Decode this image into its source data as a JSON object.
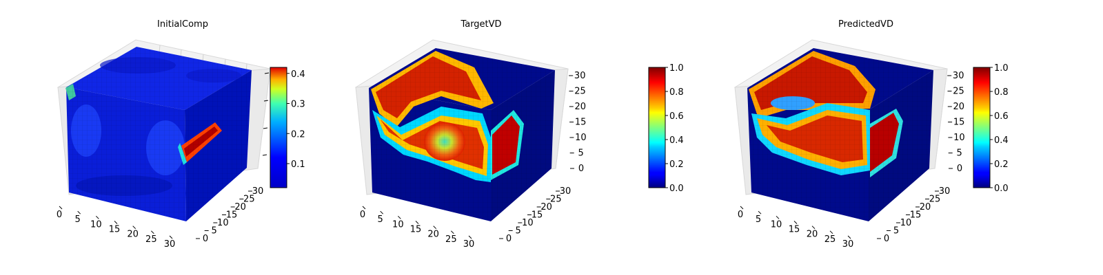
{
  "chart_data": [
    {
      "type": "heatmap",
      "subtype": "3d-voxel-cube",
      "title": "InitialComp",
      "x_ticks": [
        "0",
        "5",
        "10",
        "15",
        "20",
        "25",
        "30"
      ],
      "y_ticks": [
        "0",
        "5",
        "10",
        "15",
        "20",
        "25",
        "30"
      ],
      "z_ticks": [],
      "grid": true,
      "colormap": "jet",
      "colorbar": {
        "min": 0.02,
        "max": 0.42,
        "ticks": [
          "0.1",
          "0.2",
          "0.3",
          "0.4"
        ],
        "tick_values": [
          0.1,
          0.2,
          0.3,
          0.4
        ]
      }
    },
    {
      "type": "heatmap",
      "subtype": "3d-voxel-cube",
      "title": "TargetVD",
      "x_ticks": [
        "0",
        "5",
        "10",
        "15",
        "20",
        "25",
        "30"
      ],
      "y_ticks": [
        "0",
        "5",
        "10",
        "15",
        "20",
        "25",
        "30"
      ],
      "z_ticks": [
        "0",
        "5",
        "10",
        "15",
        "20",
        "25",
        "30"
      ],
      "grid": true,
      "colormap": "jet",
      "colorbar": {
        "min": 0.0,
        "max": 1.0,
        "ticks": [
          "0.0",
          "0.2",
          "0.4",
          "0.6",
          "0.8",
          "1.0"
        ],
        "tick_values": [
          0.0,
          0.2,
          0.4,
          0.6,
          0.8,
          1.0
        ]
      }
    },
    {
      "type": "heatmap",
      "subtype": "3d-voxel-cube",
      "title": "PredictedVD",
      "x_ticks": [
        "0",
        "5",
        "10",
        "15",
        "20",
        "25",
        "30"
      ],
      "y_ticks": [
        "0",
        "5",
        "10",
        "15",
        "20",
        "25",
        "30"
      ],
      "z_ticks": [
        "0",
        "5",
        "10",
        "15",
        "20",
        "25",
        "30"
      ],
      "grid": true,
      "colormap": "jet",
      "colorbar": {
        "min": 0.0,
        "max": 1.0,
        "ticks": [
          "0.0",
          "0.2",
          "0.4",
          "0.6",
          "0.8",
          "1.0"
        ],
        "tick_values": [
          0.0,
          0.2,
          0.4,
          0.6,
          0.8,
          1.0
        ]
      }
    }
  ]
}
